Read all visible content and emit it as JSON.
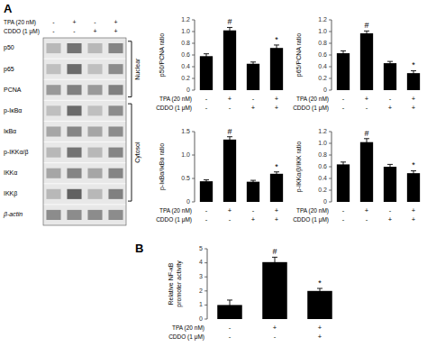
{
  "chart_data": [
    {
      "type": "blot",
      "panel_label": "A",
      "categories": [
        "p50",
        "p65",
        "PCNA",
        "p-IκBα",
        "IκBα",
        "p-IKKα/β",
        "IKKα",
        "IKKβ",
        "β-actin"
      ],
      "condition_labels": [
        "TPA (20 nM)",
        "CDDO (1 μM)"
      ],
      "conditions": [
        [
          "-",
          "+",
          "-",
          "+"
        ],
        [
          "-",
          "-",
          "+",
          "+"
        ]
      ],
      "cells": [
        [
          0.72,
          0.45,
          0.72,
          0.52
        ],
        [
          0.75,
          0.42,
          0.75,
          0.55
        ],
        [
          0.6,
          0.5,
          0.6,
          0.5
        ],
        [
          0.75,
          0.42,
          0.75,
          0.55
        ],
        [
          0.65,
          0.52,
          0.65,
          0.55
        ],
        [
          0.72,
          0.45,
          0.72,
          0.52
        ],
        [
          0.65,
          0.52,
          0.65,
          0.52
        ],
        [
          0.72,
          0.38,
          0.72,
          0.5
        ],
        [
          0.55,
          0.55,
          0.55,
          0.55
        ]
      ],
      "groups": [
        {
          "label": "Nuclear",
          "from": 0,
          "to": 2
        },
        {
          "label": "Cytosol",
          "from": 3,
          "to": 7
        }
      ]
    },
    {
      "type": "bar",
      "ylabel": "p50/PCNA ratio",
      "values": [
        0.58,
        1.02,
        0.45,
        0.72
      ],
      "errors": [
        0.04,
        0.05,
        0.03,
        0.05
      ],
      "annotations": [
        null,
        "#",
        null,
        "*"
      ],
      "condition_labels": [
        "TPA (20 nM)",
        "CDDO (1 μM)"
      ],
      "conditions": [
        [
          "-",
          "+",
          "-",
          "+"
        ],
        [
          "-",
          "-",
          "+",
          "+"
        ]
      ],
      "color": "#000000",
      "ylim": [
        0,
        1.2
      ],
      "yticks": [
        0,
        0.2,
        0.4,
        0.6,
        0.8,
        {
          "value": 1.0,
          "label": "1.0"
        },
        1.2
      ],
      "tick_labels": "y"
    },
    {
      "type": "bar",
      "ylabel": "p65/PCNA ratio",
      "values": [
        0.63,
        0.97,
        0.46,
        0.29
      ],
      "errors": [
        0.04,
        0.04,
        0.03,
        0.04
      ],
      "annotations": [
        null,
        "#",
        null,
        "*"
      ],
      "condition_labels": [
        "TPA (20 nM)",
        "CDDO (1 μM)"
      ],
      "conditions": [
        [
          "-",
          "+",
          "-",
          "+"
        ],
        [
          "-",
          "-",
          "+",
          "+"
        ]
      ],
      "color": "#000000",
      "ylim": [
        0,
        1.2
      ],
      "yticks": [
        0,
        0.2,
        0.4,
        0.6,
        0.8,
        {
          "value": 1.0,
          "label": "1.0"
        },
        1.2
      ],
      "tick_labels": "y"
    },
    {
      "type": "bar",
      "ylabel": "p-IκBα/IκBα ratio",
      "values": [
        0.44,
        1.33,
        0.43,
        0.6
      ],
      "errors": [
        0.03,
        0.06,
        0.03,
        0.04
      ],
      "annotations": [
        null,
        "#",
        null,
        "*"
      ],
      "condition_labels": [
        "TPA (20 nM)",
        "CDDO (1 μM)"
      ],
      "conditions": [
        [
          "-",
          "+",
          "-",
          "+"
        ],
        [
          "-",
          "-",
          "+",
          "+"
        ]
      ],
      "color": "#000000",
      "ylim": [
        0,
        1.5
      ],
      "yticks": [
        0,
        0.5,
        {
          "value": 1.0,
          "label": "1.0"
        },
        1.5
      ],
      "tick_labels": "y"
    },
    {
      "type": "bar",
      "ylabel": "p-IKKα/β/IKK ratio",
      "values": [
        0.64,
        1.02,
        0.6,
        0.49
      ],
      "errors": [
        0.04,
        0.06,
        0.04,
        0.04
      ],
      "annotations": [
        null,
        "#",
        null,
        "*"
      ],
      "condition_labels": [
        "TPA (20 nM)",
        "CDDO (1 μM)"
      ],
      "conditions": [
        [
          "-",
          "+",
          "-",
          "+"
        ],
        [
          "-",
          "-",
          "+",
          "+"
        ]
      ],
      "color": "#000000",
      "ylim": [
        0,
        1.2
      ],
      "yticks": [
        0,
        0.2,
        0.4,
        0.6,
        0.8,
        {
          "value": 1.0,
          "label": "1.0"
        },
        1.2
      ],
      "tick_labels": "y"
    },
    {
      "type": "bar",
      "panel_label": "B",
      "ylabel": "Relative NF-κB\npromoter activity",
      "values": [
        1.0,
        4.05,
        2.0
      ],
      "errors": [
        0.35,
        0.35,
        0.18
      ],
      "annotations": [
        null,
        "#",
        "*"
      ],
      "condition_labels": [
        "TPA (20 nM)",
        "CDDO (1 μM)"
      ],
      "conditions": [
        [
          "-",
          "+",
          "+"
        ],
        [
          "-",
          "-",
          "+"
        ]
      ],
      "color": "#000000",
      "ylim": [
        0,
        5
      ],
      "yticks": [
        0,
        1,
        2,
        3,
        4,
        5
      ],
      "tick_labels": "y"
    }
  ]
}
